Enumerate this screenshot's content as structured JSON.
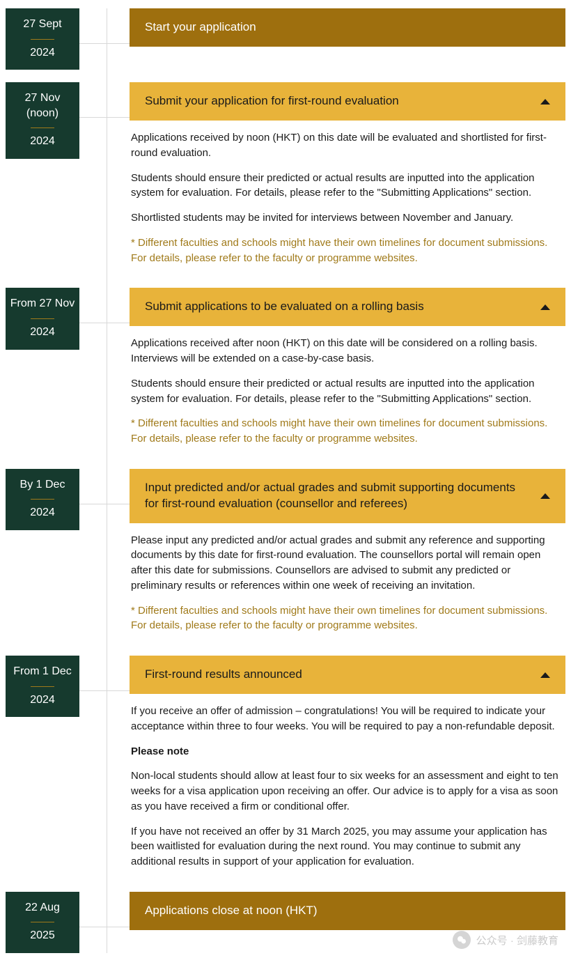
{
  "colors": {
    "date_bg": "#163a2e",
    "date_text": "#ffffff",
    "date_sep": "#a07a1a",
    "vline": "#d8d8d8",
    "header_plain_bg": "#9e6f0e",
    "header_plain_text": "#ffffff",
    "header_expanded_bg": "#e8b33a",
    "header_expanded_text": "#1a1a1a",
    "body_text": "#1a1a1a",
    "note_text": "#a07a1a"
  },
  "items": [
    {
      "date_line1": "27 Sept",
      "year": "2024",
      "header_style": "plain",
      "title": "Start your application",
      "expandable": false,
      "paragraphs": []
    },
    {
      "date_line1": "27 Nov (noon)",
      "year": "2024",
      "header_style": "expanded",
      "title": "Submit your application for first-round evaluation",
      "expandable": true,
      "paragraphs": [
        {
          "text": "Applications received by noon (HKT) on this date will be evaluated and shortlisted for first-round evaluation."
        },
        {
          "text": "Students should ensure their predicted or actual results are inputted into the application system for evaluation. For details, please refer to the \"Submitting Applications\" section."
        },
        {
          "text": "Shortlisted students may be invited for interviews between November and January."
        },
        {
          "text": "* Different faculties and schools might have their own timelines for document submissions. For details, please refer to the faculty or programme websites.",
          "note": true
        }
      ]
    },
    {
      "date_line1": "From 27 Nov",
      "year": "2024",
      "header_style": "expanded",
      "title": "Submit applications to be evaluated on a rolling basis",
      "expandable": true,
      "paragraphs": [
        {
          "text": "Applications received after noon (HKT) on this date will be considered on a rolling basis. Interviews will be extended on a case-by-case basis."
        },
        {
          "text": "Students should ensure their predicted or actual results are inputted into the application system for evaluation. For details, please refer to the \"Submitting Applications\" section."
        },
        {
          "text": "* Different faculties and schools might have their own timelines for document submissions. For details, please refer to the faculty or programme websites.",
          "note": true
        }
      ]
    },
    {
      "date_line1": "By 1 Dec",
      "year": "2024",
      "header_style": "expanded",
      "title": "Input predicted and/or actual grades and submit supporting documents for first-round evaluation (counsellor and referees)",
      "expandable": true,
      "paragraphs": [
        {
          "text": "Please input any predicted and/or actual grades and submit any reference and supporting documents by this date for first-round evaluation. The counsellors portal will remain open after this date for submissions. Counsellors are advised to submit any predicted or preliminary results or references within one week of receiving an invitation."
        },
        {
          "text": "* Different faculties and schools might have their own timelines for document submissions. For details, please refer to the faculty or programme websites.",
          "note": true
        }
      ]
    },
    {
      "date_line1": "From 1 Dec",
      "year": "2024",
      "header_style": "expanded",
      "title": "First-round results announced",
      "expandable": true,
      "paragraphs": [
        {
          "text": "If you receive an offer of admission – congratulations! You will be required to indicate your acceptance within three to four weeks. You will be required to pay a non-refundable deposit."
        },
        {
          "text": "Please note",
          "bold": true
        },
        {
          "text": "Non-local students should allow at least four to six weeks for an assessment and eight to ten weeks for a visa application upon receiving an offer. Our advice is to apply for a visa as soon as you have received a firm or conditional offer."
        },
        {
          "text": "If you have not received an offer by 31 March 2025, you may assume your application has been waitlisted for evaluation during the next round. You may continue to submit any additional results in support of your application for evaluation."
        }
      ]
    },
    {
      "date_line1": "22 Aug",
      "year": "2025",
      "header_style": "plain",
      "title": "Applications close at noon (HKT)",
      "expandable": false,
      "paragraphs": []
    }
  ],
  "watermark": {
    "text": "公众号 · 剑藤教育"
  }
}
